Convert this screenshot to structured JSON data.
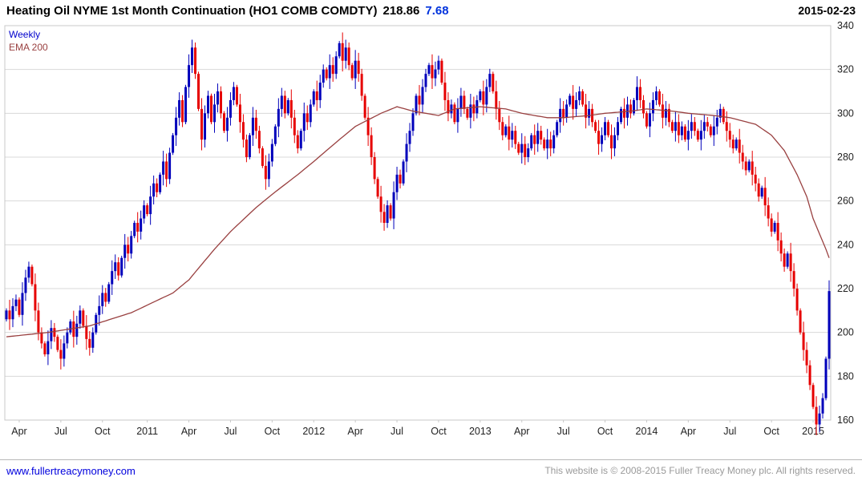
{
  "header": {
    "title": "Heating Oil NYME 1st Month Continuation (HO1 COMB COMDTY)",
    "price": "218.86",
    "change": "7.68",
    "date": "2015-02-23"
  },
  "legend": {
    "timeframe": "Weekly",
    "ema": "EMA 200"
  },
  "footer": {
    "link": "www.fullertreacymoney.com",
    "copyright": "This website is © 2008-2015 Fuller Treacy Money plc. All rights reserved."
  },
  "chart_data": {
    "type": "candlestick",
    "title": "Heating Oil NYME 1st Month Continuation (HO1 COMB COMDTY)",
    "timeframe": "Weekly",
    "overlay": "EMA 200",
    "last_price": 218.86,
    "change": 7.68,
    "as_of_date": "2015-02-23",
    "ylim": [
      160,
      340
    ],
    "y_step": 20,
    "y_tick_labels": [
      "340",
      "320",
      "300",
      "280",
      "260",
      "240",
      "220",
      "200",
      "180",
      "160"
    ],
    "x_ticks": [
      {
        "label": "Apr",
        "i": 4
      },
      {
        "label": "Jul",
        "i": 17
      },
      {
        "label": "Oct",
        "i": 30
      },
      {
        "label": "2011",
        "i": 44
      },
      {
        "label": "Apr",
        "i": 57
      },
      {
        "label": "Jul",
        "i": 70
      },
      {
        "label": "Oct",
        "i": 83
      },
      {
        "label": "2012",
        "i": 96
      },
      {
        "label": "Apr",
        "i": 109
      },
      {
        "label": "Jul",
        "i": 122
      },
      {
        "label": "Oct",
        "i": 135
      },
      {
        "label": "2013",
        "i": 148
      },
      {
        "label": "Apr",
        "i": 161
      },
      {
        "label": "Jul",
        "i": 174
      },
      {
        "label": "Oct",
        "i": 187
      },
      {
        "label": "2014",
        "i": 200
      },
      {
        "label": "Apr",
        "i": 213
      },
      {
        "label": "Jul",
        "i": 226
      },
      {
        "label": "Oct",
        "i": 239
      },
      {
        "label": "2015",
        "i": 252
      }
    ],
    "weekly_closes": [
      210,
      206,
      212,
      215,
      208,
      218,
      225,
      230,
      222,
      210,
      200,
      195,
      190,
      196,
      202,
      198,
      192,
      188,
      195,
      200,
      205,
      198,
      204,
      210,
      203,
      197,
      193,
      200,
      208,
      212,
      218,
      214,
      222,
      228,
      232,
      226,
      234,
      240,
      236,
      244,
      250,
      246,
      252,
      258,
      254,
      262,
      268,
      264,
      272,
      278,
      270,
      282,
      290,
      298,
      306,
      296,
      312,
      322,
      330,
      318,
      302,
      288,
      300,
      308,
      296,
      304,
      310,
      300,
      292,
      298,
      306,
      312,
      304,
      296,
      288,
      280,
      290,
      298,
      292,
      284,
      276,
      270,
      278,
      286,
      294,
      302,
      308,
      300,
      306,
      298,
      290,
      284,
      292,
      300,
      296,
      304,
      310,
      306,
      314,
      320,
      316,
      322,
      318,
      326,
      332,
      324,
      330,
      322,
      316,
      324,
      318,
      308,
      298,
      290,
      280,
      270,
      262,
      255,
      250,
      258,
      252,
      264,
      272,
      268,
      278,
      286,
      292,
      300,
      308,
      304,
      312,
      318,
      322,
      316,
      320,
      324,
      314,
      306,
      300,
      304,
      296,
      302,
      308,
      302,
      298,
      304,
      300,
      306,
      310,
      304,
      312,
      318,
      310,
      302,
      296,
      290,
      294,
      288,
      292,
      286,
      282,
      286,
      280,
      284,
      290,
      286,
      292,
      288,
      284,
      288,
      284,
      290,
      296,
      302,
      298,
      304,
      308,
      302,
      306,
      310,
      304,
      298,
      302,
      296,
      292,
      286,
      290,
      296,
      290,
      284,
      290,
      296,
      302,
      298,
      304,
      300,
      306,
      312,
      306,
      300,
      294,
      300,
      306,
      310,
      304,
      298,
      302,
      296,
      292,
      296,
      290,
      294,
      288,
      292,
      296,
      292,
      288,
      292,
      296,
      294,
      290,
      294,
      298,
      302,
      296,
      292,
      288,
      284,
      288,
      282,
      278,
      274,
      278,
      272,
      268,
      262,
      266,
      258,
      252,
      246,
      250,
      242,
      236,
      230,
      236,
      228,
      220,
      210,
      200,
      192,
      185,
      176,
      166,
      158,
      163,
      170,
      188,
      218.86
    ],
    "ema200_points": [
      [
        0,
        198
      ],
      [
        13,
        200
      ],
      [
        26,
        203
      ],
      [
        39,
        209
      ],
      [
        52,
        218
      ],
      [
        57,
        224
      ],
      [
        65,
        238
      ],
      [
        70,
        246
      ],
      [
        78,
        257
      ],
      [
        83,
        263
      ],
      [
        91,
        272
      ],
      [
        96,
        278
      ],
      [
        104,
        288
      ],
      [
        109,
        294
      ],
      [
        117,
        300
      ],
      [
        122,
        303
      ],
      [
        127,
        301
      ],
      [
        135,
        299
      ],
      [
        140,
        302
      ],
      [
        148,
        303
      ],
      [
        156,
        302
      ],
      [
        161,
        300
      ],
      [
        169,
        298
      ],
      [
        174,
        298
      ],
      [
        182,
        299
      ],
      [
        187,
        300
      ],
      [
        195,
        301
      ],
      [
        200,
        302
      ],
      [
        208,
        301
      ],
      [
        213,
        300
      ],
      [
        221,
        299
      ],
      [
        226,
        298
      ],
      [
        234,
        295
      ],
      [
        239,
        290
      ],
      [
        243,
        283
      ],
      [
        247,
        272
      ],
      [
        250,
        262
      ],
      [
        252,
        252
      ],
      [
        254,
        245
      ],
      [
        256,
        238
      ],
      [
        257,
        234
      ]
    ],
    "colors": {
      "up": "#0000bb",
      "down": "#e60000",
      "ema": "#994040",
      "grid": "#d8d8d8",
      "border": "#c8c8c8",
      "axis_text": "#222222"
    },
    "grid": "horizontal",
    "legend_position": "top-left",
    "y_axis_position": "right"
  }
}
